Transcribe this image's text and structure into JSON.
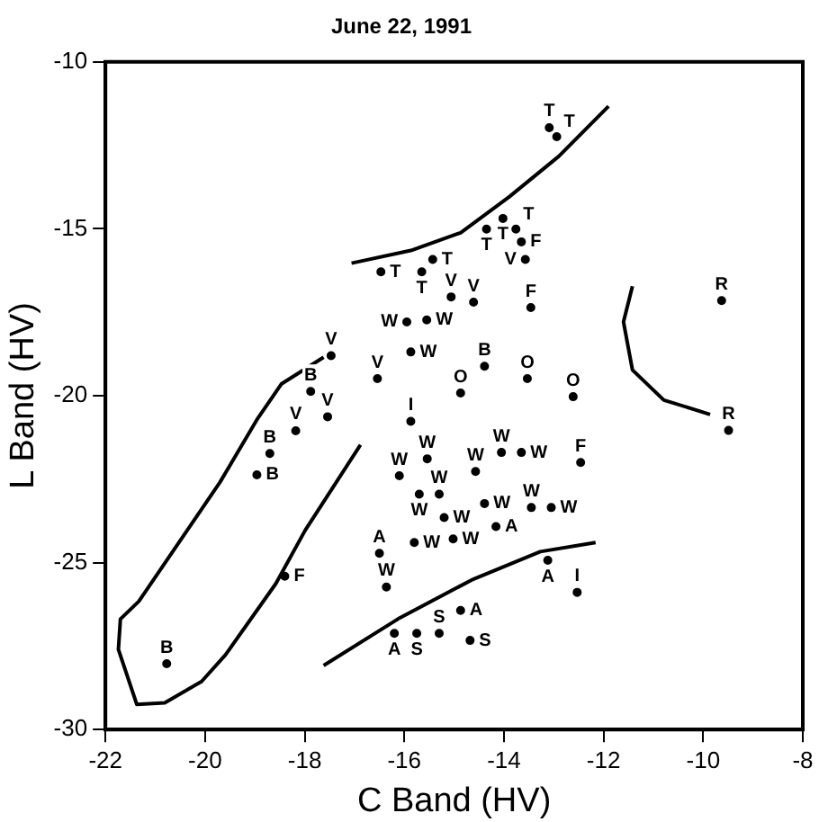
{
  "chart_data": {
    "type": "scatter",
    "title": "June 22, 1991",
    "xlabel": "C Band (HV)",
    "ylabel": "L Band (HV)",
    "xlim": [
      -22,
      -8
    ],
    "xticks": [
      -22,
      -20,
      -18,
      -16,
      -14,
      -12,
      -10,
      -8
    ],
    "ylim": [
      -30,
      -10
    ],
    "yticks": [
      -30,
      -25,
      -20,
      -15,
      -10
    ],
    "grid": false,
    "legend": false,
    "series": [
      {
        "name": "T",
        "type": "scatter",
        "color": "#000000",
        "x": [
          -16.47,
          -15.65,
          -15.43,
          -14.35,
          -14.02,
          -13.76,
          -13.09,
          -12.94
        ],
        "values": [
          -16.29,
          -16.29,
          -15.92,
          -15.01,
          -14.69,
          -15.01,
          -11.97,
          -12.24
        ]
      },
      {
        "name": "F",
        "type": "scatter",
        "color": "#000000",
        "x": [
          -13.65,
          -13.46,
          -12.46,
          -18.4
        ],
        "values": [
          -15.39,
          -17.36,
          -22.0,
          -25.41
        ]
      },
      {
        "name": "V",
        "type": "scatter",
        "color": "#000000",
        "x": [
          -13.57,
          -15.06,
          -14.61,
          -17.47,
          -16.54,
          -18.18,
          -17.54
        ],
        "values": [
          -15.92,
          -17.04,
          -17.2,
          -18.8,
          -19.49,
          -21.05,
          -20.63
        ]
      },
      {
        "name": "B",
        "type": "scatter",
        "color": "#000000",
        "x": [
          -17.88,
          -18.7,
          -18.96,
          -14.39,
          -20.77
        ],
        "values": [
          -19.87,
          -21.73,
          -22.37,
          -19.12,
          -28.03
        ]
      },
      {
        "name": "O",
        "type": "scatter",
        "color": "#000000",
        "x": [
          -14.87,
          -13.53,
          -12.61
        ],
        "values": [
          -19.92,
          -19.49,
          -20.03
        ]
      },
      {
        "name": "I",
        "type": "scatter",
        "color": "#000000",
        "x": [
          -15.87,
          -12.53
        ],
        "values": [
          -20.77,
          -25.89
        ]
      },
      {
        "name": "R",
        "type": "scatter",
        "color": "#000000",
        "x": [
          -9.63,
          -9.49
        ],
        "values": [
          -17.15,
          -21.04
        ]
      },
      {
        "name": "W",
        "type": "scatter",
        "color": "#000000",
        "x": [
          -15.95,
          -15.55,
          -15.87,
          -15.54,
          -16.1,
          -15.7,
          -15.3,
          -15.2,
          -15.02,
          -15.8,
          -14.57,
          -14.05,
          -13.65,
          -14.39,
          -13.45,
          -13.05,
          -16.36
        ],
        "values": [
          -17.79,
          -17.73,
          -18.69,
          -21.89,
          -22.4,
          -22.95,
          -22.95,
          -23.65,
          -24.29,
          -24.4,
          -22.27,
          -21.7,
          -21.7,
          -23.23,
          -23.35,
          -23.35,
          -25.73
        ]
      },
      {
        "name": "A",
        "type": "scatter",
        "color": "#000000",
        "x": [
          -16.5,
          -14.16,
          -13.12,
          -14.87,
          -16.2
        ],
        "values": [
          -24.72,
          -23.92,
          -24.93,
          -26.43,
          -27.12
        ]
      },
      {
        "name": "S",
        "type": "scatter",
        "color": "#000000",
        "x": [
          -15.75,
          -15.3,
          -14.68
        ],
        "values": [
          -27.12,
          -27.12,
          -27.33
        ]
      },
      {
        "type": "line",
        "color": "#000000",
        "x": [
          -17.06,
          -15.87,
          -14.87,
          -13.9,
          -12.9,
          -11.9
        ],
        "values": [
          -16.03,
          -15.65,
          -15.12,
          -14.05,
          -12.83,
          -11.33
        ]
      },
      {
        "type": "line",
        "color": "#000000",
        "x": [
          -17.62,
          -16.13,
          -14.65,
          -13.27,
          -12.16
        ],
        "values": [
          -28.08,
          -26.69,
          -25.52,
          -24.67,
          -24.4
        ]
      },
      {
        "type": "line",
        "color": "#000000",
        "x": [
          -11.42,
          -11.6,
          -11.42,
          -10.79,
          -9.86
        ],
        "values": [
          -16.72,
          -17.79,
          -19.23,
          -20.13,
          -20.56
        ]
      },
      {
        "type": "line",
        "color": "#000000",
        "x": [
          -17.62,
          -18.47,
          -18.96,
          -19.7,
          -21.33,
          -21.7,
          -21.74,
          -21.37,
          -20.81,
          -20.07,
          -19.59,
          -18.58,
          -17.99,
          -16.88
        ],
        "values": [
          -18.85,
          -19.65,
          -20.72,
          -22.59,
          -26.16,
          -26.69,
          -27.6,
          -29.25,
          -29.2,
          -28.56,
          -27.76,
          -25.63,
          -24.03,
          -21.47
        ]
      }
    ]
  }
}
